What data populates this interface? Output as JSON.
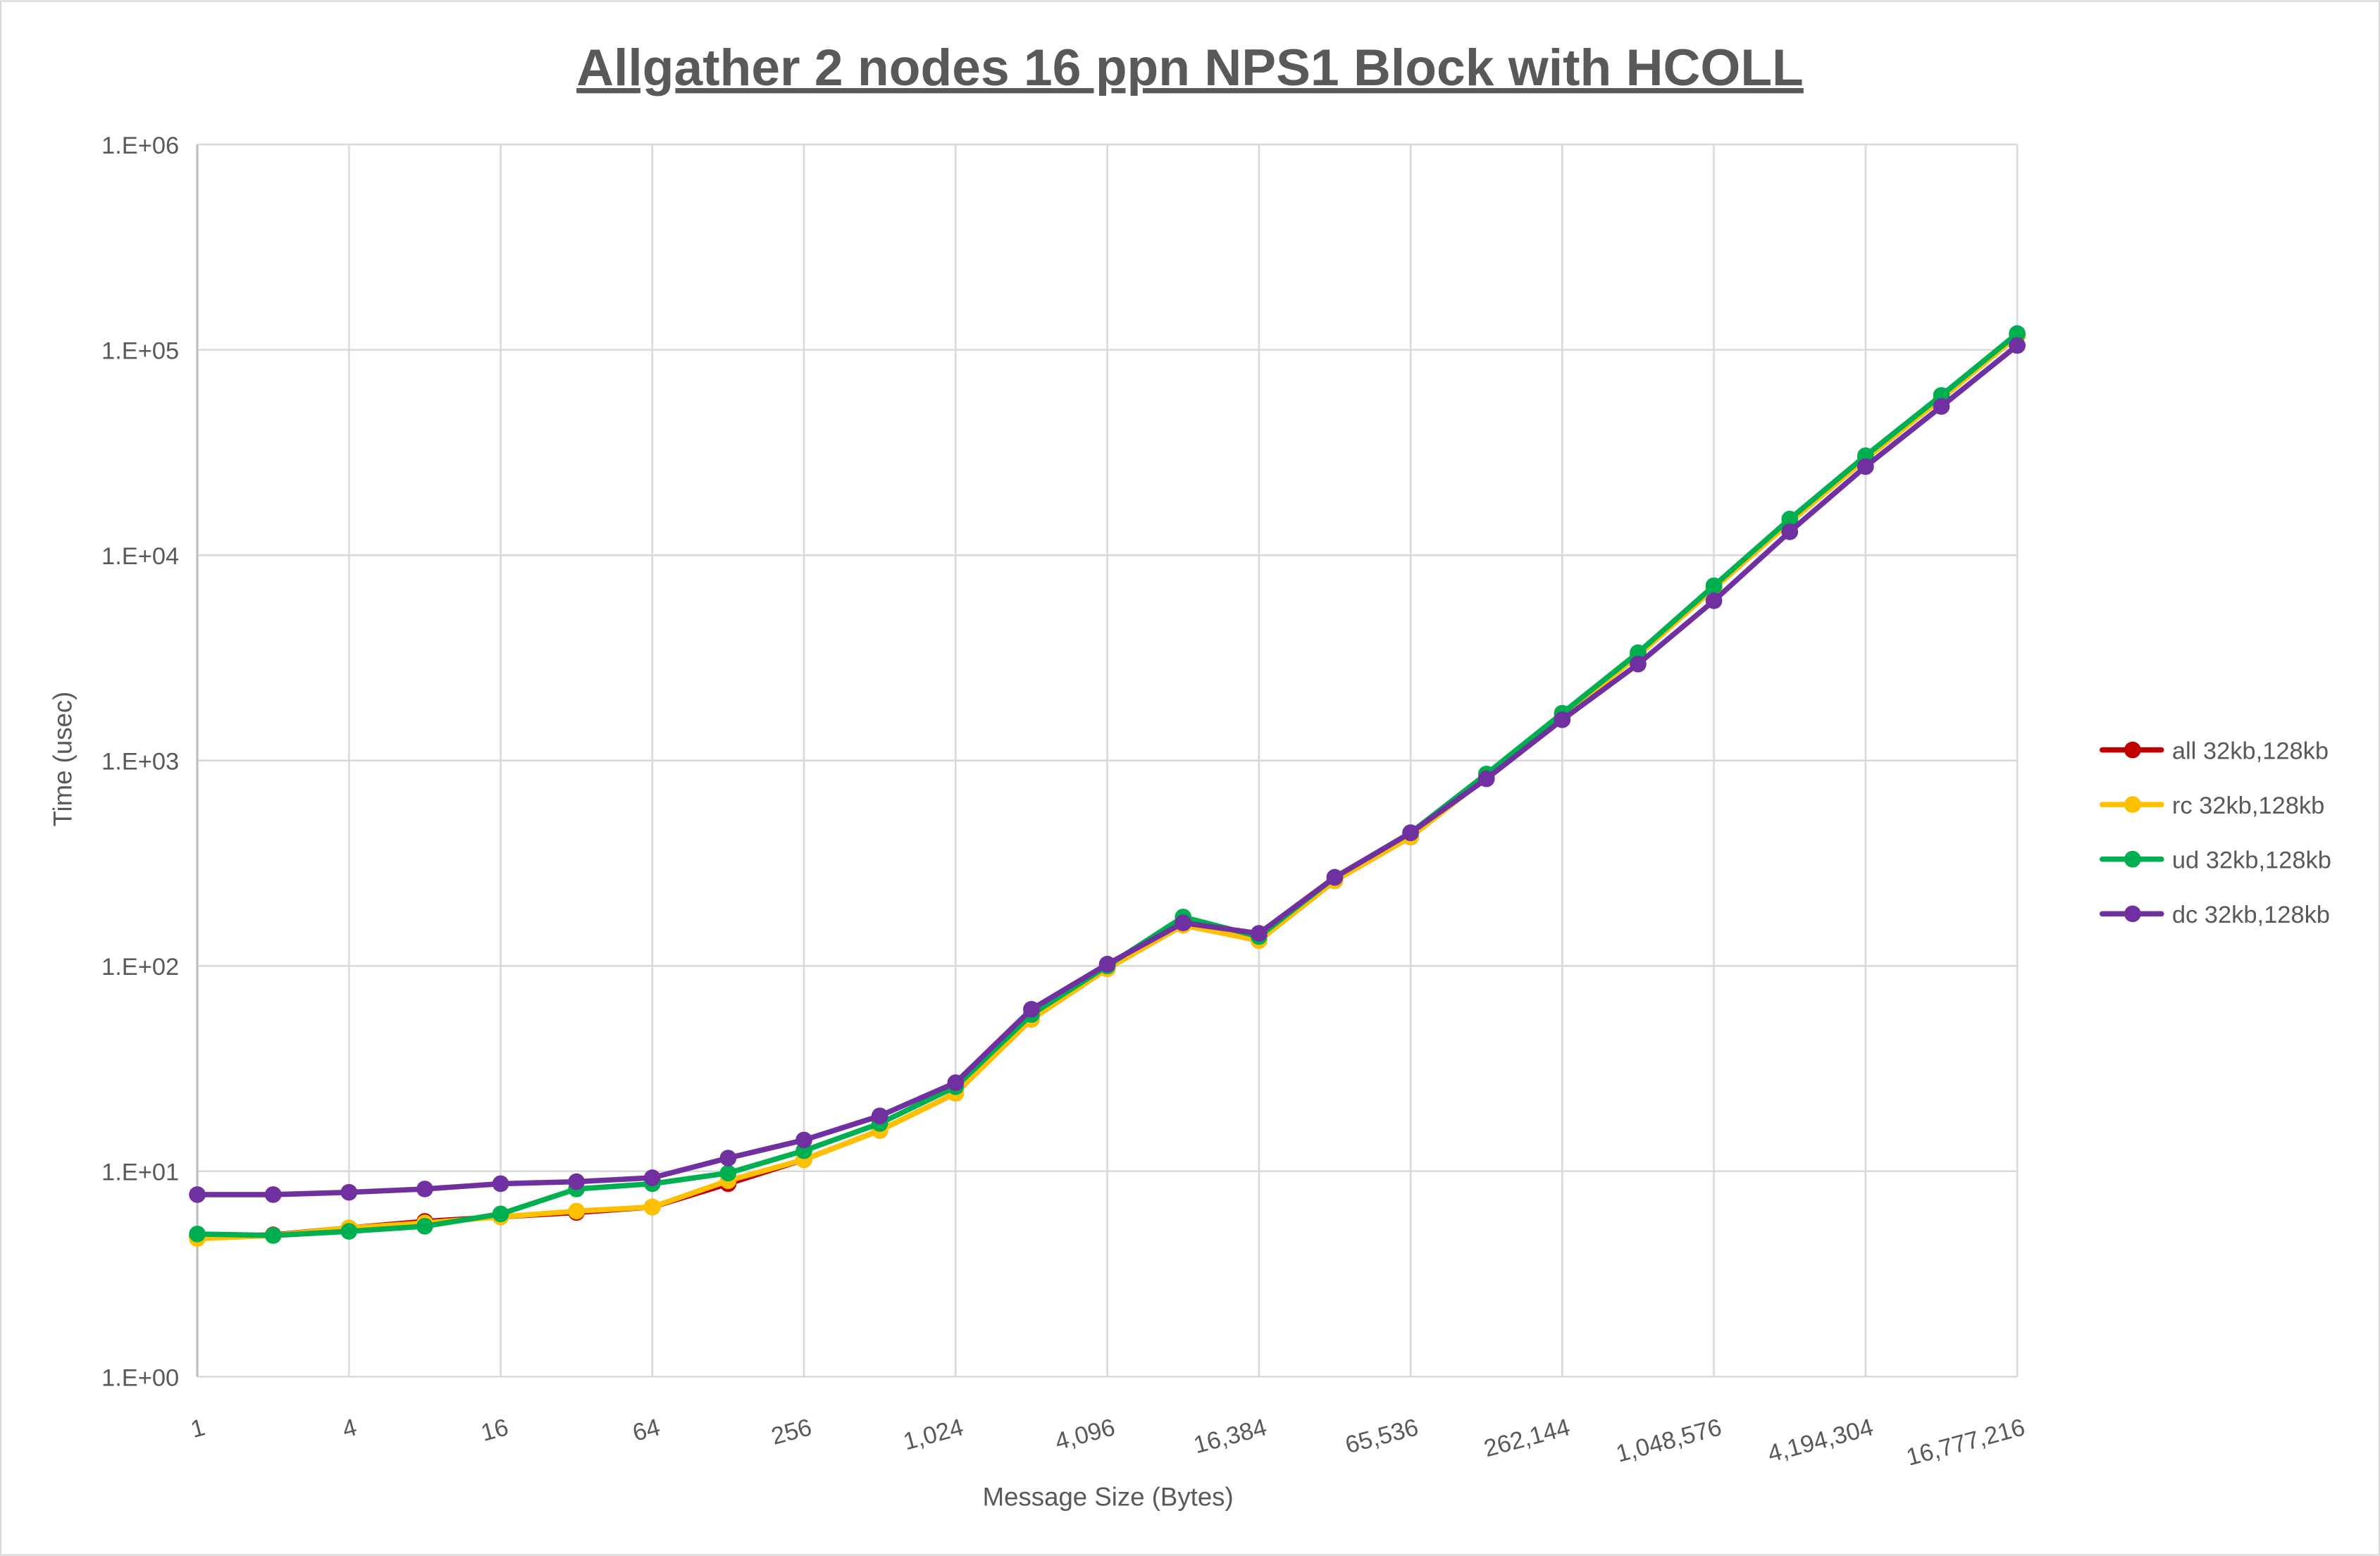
{
  "chart_data": {
    "type": "line",
    "title": "Allgather 2 nodes 16 ppn NPS1 Block with HCOLL",
    "xlabel": "Message Size (Bytes)",
    "ylabel": "Time (usec)",
    "x_scale": "log2",
    "y_scale": "log10",
    "ylim": [
      1,
      1000000
    ],
    "grid": true,
    "legend_position": "right",
    "x": [
      1,
      2,
      4,
      8,
      16,
      32,
      64,
      128,
      256,
      512,
      1024,
      2048,
      4096,
      8192,
      16384,
      32768,
      65536,
      131072,
      262144,
      524288,
      1048576,
      2097152,
      4194304,
      8388608,
      16777216
    ],
    "x_tick_labels": [
      "1",
      "4",
      "16",
      "64",
      "256",
      "1,024",
      "4,096",
      "16,384",
      "65,536",
      "262,144",
      "1,048,576",
      "4,194,304",
      "16,777,216"
    ],
    "y_tick_labels": [
      "1.E+00",
      "1.E+01",
      "1.E+02",
      "1.E+03",
      "1.E+04",
      "1.E+05",
      "1.E+06"
    ],
    "series": [
      {
        "name": "all 32kb,128kb",
        "color": "#C00000",
        "values": [
          4.8,
          4.9,
          5.3,
          5.7,
          6.0,
          6.3,
          6.7,
          8.7,
          11.4,
          15.8,
          24,
          55,
          97,
          158,
          133,
          260,
          425,
          830,
          1650,
          3250,
          6900,
          14500,
          29500,
          58000,
          117000
        ]
      },
      {
        "name": "rc 32kb,128kb",
        "color": "#FFC000",
        "values": [
          4.7,
          4.87,
          5.3,
          5.6,
          6.0,
          6.4,
          6.7,
          9.0,
          11.4,
          15.8,
          24,
          55,
          97,
          158,
          133,
          260,
          425,
          830,
          1650,
          3250,
          6900,
          14500,
          29500,
          58000,
          117000
        ]
      },
      {
        "name": "ud 32kb,128kb",
        "color": "#00B050",
        "values": [
          4.95,
          4.87,
          5.1,
          5.4,
          6.2,
          8.2,
          8.7,
          9.8,
          12.6,
          17.1,
          25.8,
          58,
          100,
          173,
          139,
          270,
          445,
          860,
          1700,
          3350,
          7100,
          15000,
          30500,
          60000,
          120000
        ]
      },
      {
        "name": "dc 32kb,128kb",
        "color": "#7030A0",
        "values": [
          7.7,
          7.7,
          7.9,
          8.2,
          8.7,
          8.9,
          9.3,
          11.6,
          14.2,
          18.6,
          27,
          61.5,
          102,
          162,
          144,
          270,
          445,
          815,
          1580,
          2950,
          6000,
          13000,
          27000,
          53000,
          105000
        ]
      }
    ]
  }
}
